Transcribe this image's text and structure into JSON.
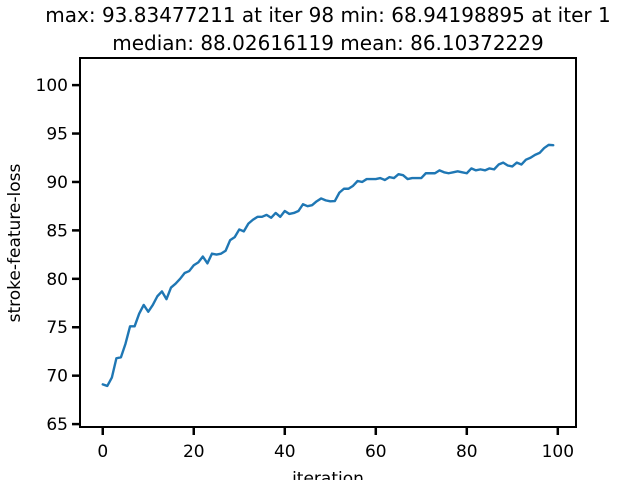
{
  "chart_data": {
    "type": "line",
    "title_line1": "max: 93.83477211 at iter 98 min: 68.94198895 at iter 1",
    "title_line2": "median: 88.02616119 mean: 86.10372229",
    "xlabel": "iteration",
    "ylabel": "stroke-feature-loss",
    "xlim": [
      -5,
      104
    ],
    "ylim": [
      64.7,
      102.8
    ],
    "xticks": [
      0,
      20,
      40,
      60,
      80,
      100
    ],
    "yticks": [
      65,
      70,
      75,
      80,
      85,
      90,
      95,
      100
    ],
    "grid": false,
    "line_color": "#1f77b4",
    "series": [
      {
        "x": [
          0,
          1,
          2,
          3,
          4,
          5,
          6,
          7,
          8,
          9,
          10,
          11,
          12,
          13,
          14,
          15,
          16,
          17,
          18,
          19,
          20,
          21,
          22,
          23,
          24,
          25,
          26,
          27,
          28,
          29,
          30,
          31,
          32,
          33,
          34,
          35,
          36,
          37,
          38,
          39,
          40,
          41,
          42,
          43,
          44,
          45,
          46,
          47,
          48,
          49,
          50,
          51,
          52,
          53,
          54,
          55,
          56,
          57,
          58,
          59,
          60,
          61,
          62,
          63,
          64,
          65,
          66,
          67,
          68,
          69,
          70,
          71,
          72,
          73,
          74,
          75,
          76,
          77,
          78,
          79,
          80,
          81,
          82,
          83,
          84,
          85,
          86,
          87,
          88,
          89,
          90,
          91,
          92,
          93,
          94,
          95,
          96,
          97,
          98,
          99
        ],
        "y": [
          69.1,
          68.94,
          69.8,
          71.8,
          71.9,
          73.3,
          75.1,
          75.1,
          76.4,
          77.3,
          76.6,
          77.3,
          78.2,
          78.7,
          77.9,
          79.1,
          79.5,
          80.0,
          80.6,
          80.8,
          81.4,
          81.7,
          82.3,
          81.6,
          82.6,
          82.5,
          82.6,
          82.9,
          84.0,
          84.3,
          85.1,
          84.9,
          85.7,
          86.1,
          86.4,
          86.4,
          86.6,
          86.3,
          86.8,
          86.4,
          87.0,
          86.7,
          86.8,
          87.0,
          87.7,
          87.5,
          87.6,
          88.0,
          88.3,
          88.1,
          88.0,
          88.03,
          88.9,
          89.3,
          89.3,
          89.6,
          90.1,
          90.0,
          90.3,
          90.3,
          90.3,
          90.4,
          90.2,
          90.5,
          90.4,
          90.8,
          90.7,
          90.3,
          90.4,
          90.4,
          90.4,
          90.9,
          90.9,
          90.9,
          91.2,
          91.0,
          90.9,
          91.0,
          91.1,
          91.0,
          90.9,
          91.4,
          91.2,
          91.3,
          91.2,
          91.4,
          91.3,
          91.8,
          92.0,
          91.7,
          91.6,
          92.0,
          91.8,
          92.3,
          92.5,
          92.8,
          93.0,
          93.5,
          93.83,
          93.8
        ]
      }
    ]
  }
}
